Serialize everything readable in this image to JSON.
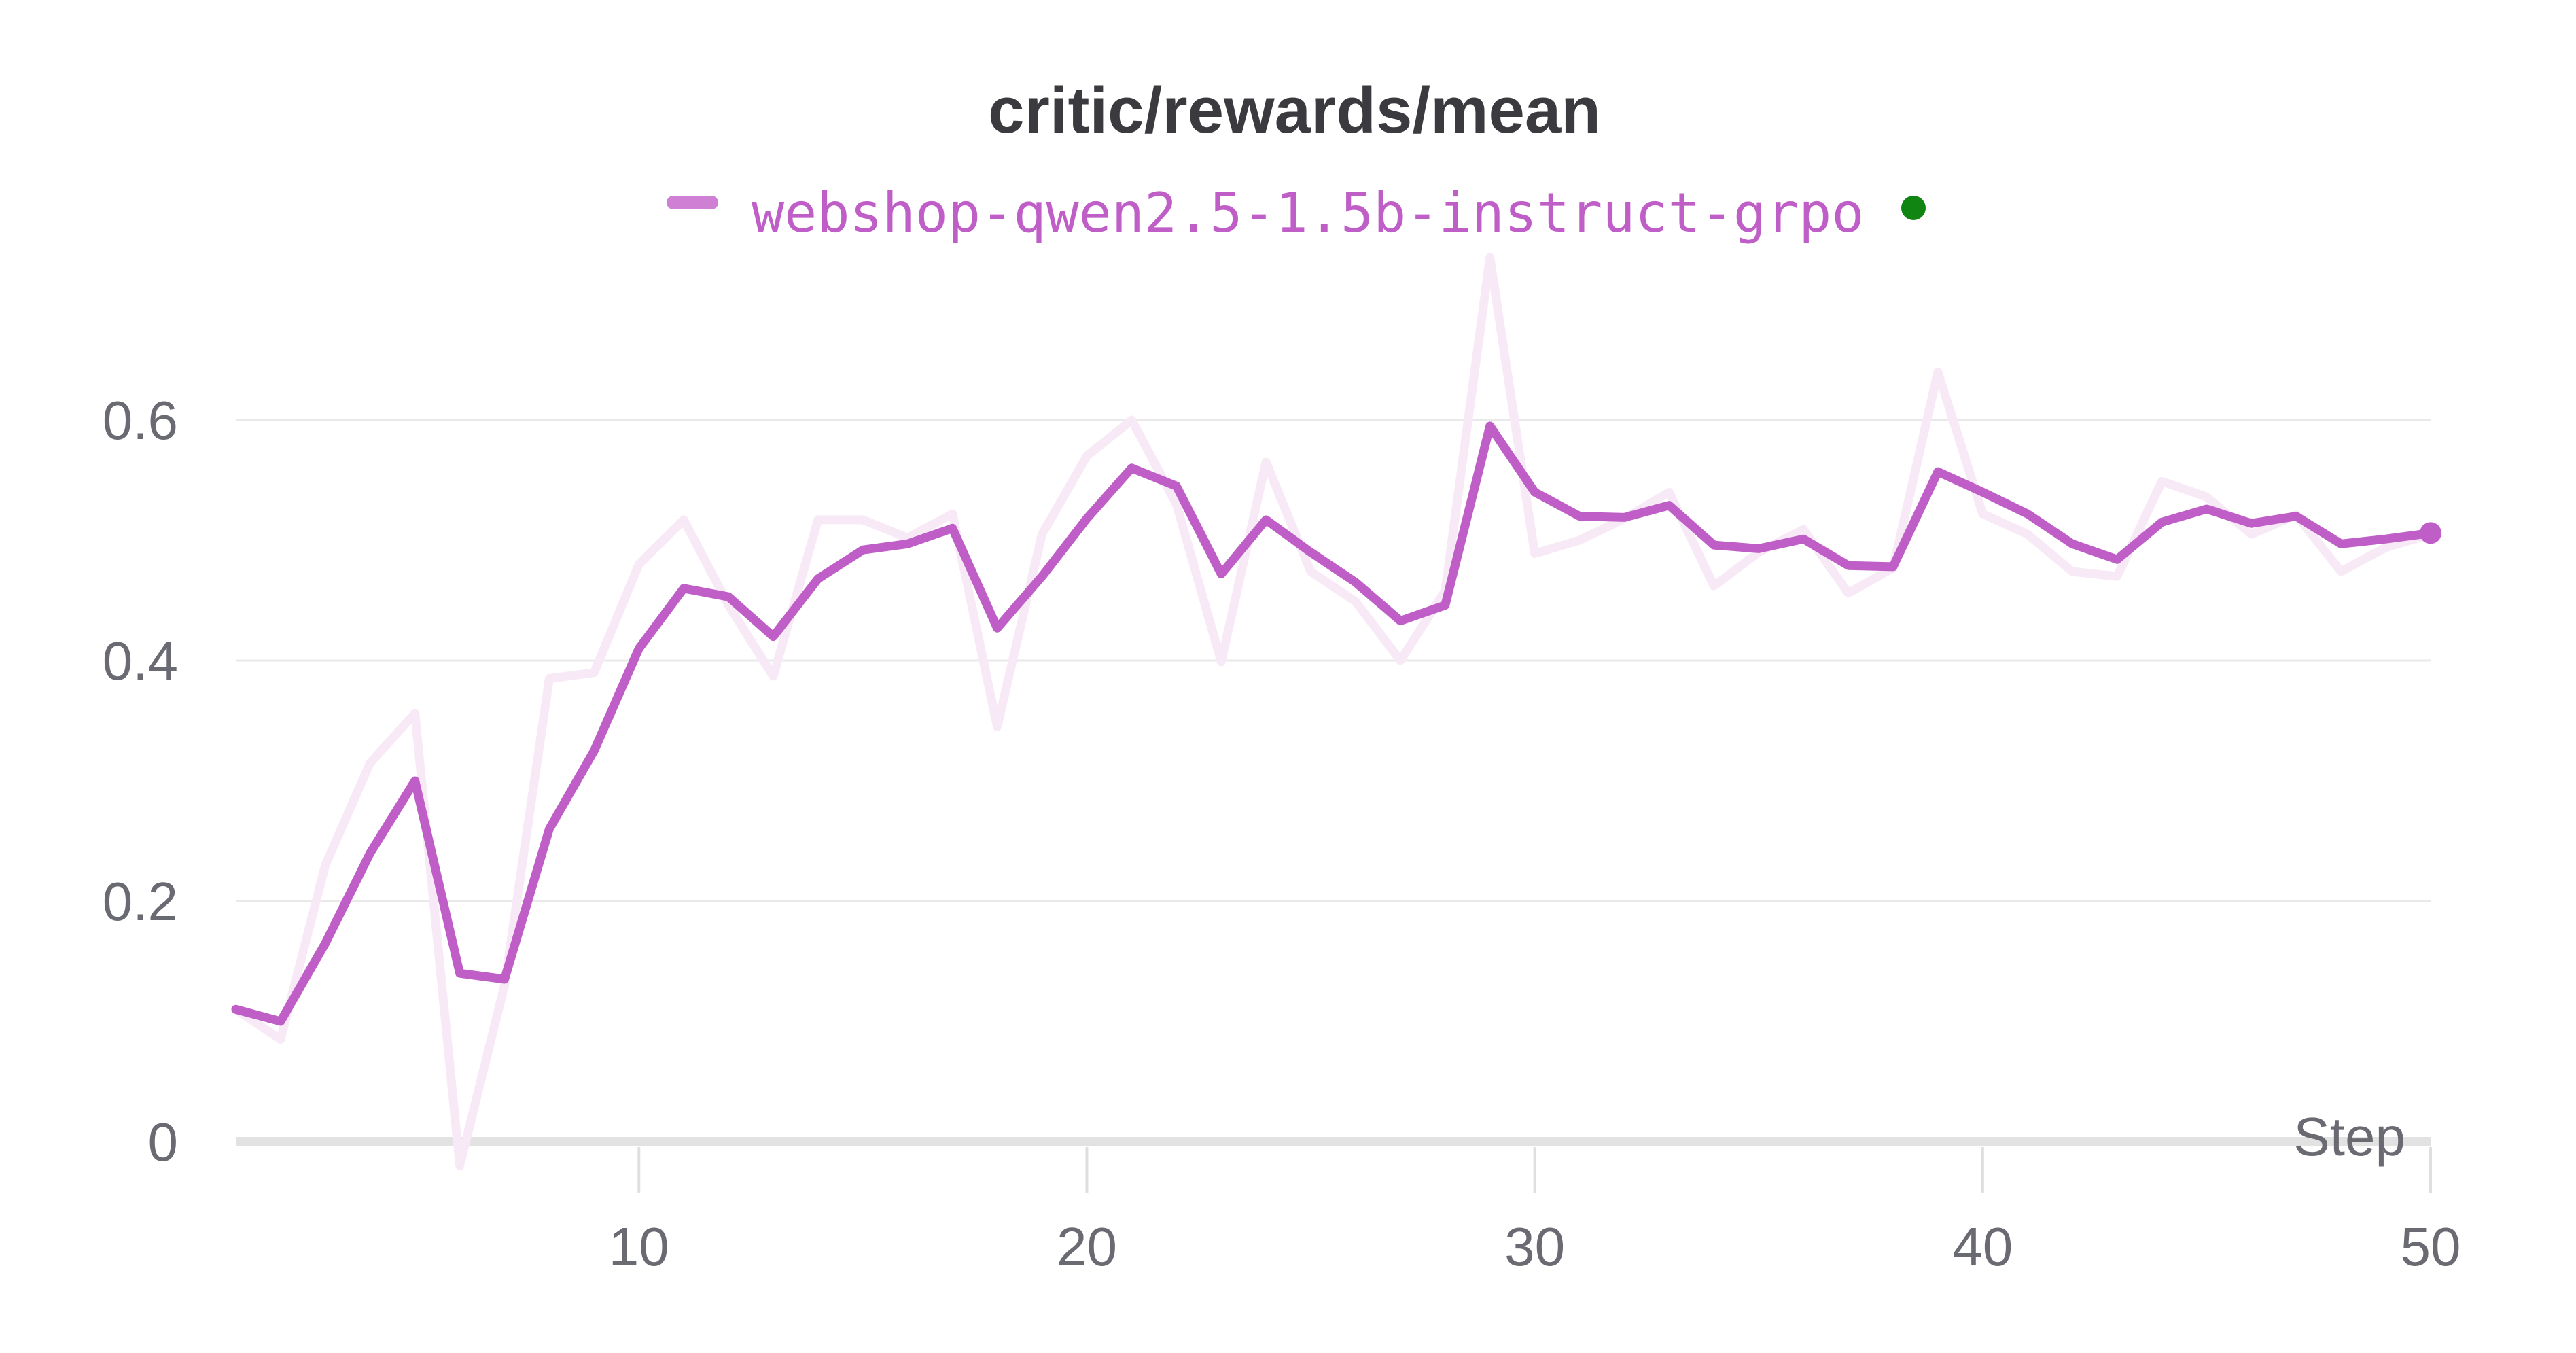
{
  "page": {
    "title": "critic/rewards/mean"
  },
  "legend": {
    "label": "webshop-qwen2.5-1.5b-instruct-grpo",
    "status_dot": "run-active-green-dot"
  },
  "colors": {
    "line": "#c05ec8",
    "line_raw": "#f7eaf6",
    "legend_text": "#c05ec8",
    "legend_swatch": "#cf7fd4",
    "green_dot": "#118511",
    "title": "#3a3a3f",
    "tick_text": "#6a6a72",
    "gridline": "#e9e9e9",
    "baseline": "#e2e2e2",
    "tick_mark": "#dfdfe3",
    "background": "#ffffff"
  },
  "chart_data": {
    "type": "line",
    "title": "critic/rewards/mean",
    "xlabel": "Step",
    "ylabel": "",
    "legend_position": "top-center",
    "grid": "horizontal",
    "x_axis": {
      "range": [
        1,
        50
      ],
      "ticks": [
        10,
        20,
        30,
        40,
        50
      ]
    },
    "y_axis": {
      "range": [
        -0.05,
        0.75
      ],
      "ticks": [
        {
          "label": "0",
          "value": 0
        },
        {
          "label": "0.2",
          "value": 0.2
        },
        {
          "label": "0.4",
          "value": 0.4
        },
        {
          "label": "0.6",
          "value": 0.6
        }
      ]
    },
    "x": [
      1,
      2,
      3,
      4,
      5,
      6,
      7,
      8,
      9,
      10,
      11,
      12,
      13,
      14,
      15,
      16,
      17,
      18,
      19,
      20,
      21,
      22,
      23,
      24,
      25,
      26,
      27,
      28,
      29,
      30,
      31,
      32,
      33,
      34,
      35,
      36,
      37,
      38,
      39,
      40,
      41,
      42,
      43,
      44,
      45,
      46,
      47,
      48,
      49,
      50
    ],
    "series": [
      {
        "name": "webshop-qwen2.5-1.5b-instruct-grpo (original)",
        "role": "raw",
        "values": [
          0.11,
          0.085,
          0.23,
          0.315,
          0.356,
          -0.02,
          0.13,
          0.385,
          0.39,
          0.48,
          0.517,
          0.446,
          0.387,
          0.517,
          0.517,
          0.502,
          0.522,
          0.345,
          0.505,
          0.57,
          0.6,
          0.53,
          0.399,
          0.565,
          0.474,
          0.449,
          0.4,
          0.458,
          0.735,
          0.489,
          0.5,
          0.518,
          0.54,
          0.462,
          0.49,
          0.509,
          0.456,
          0.477,
          0.64,
          0.522,
          0.505,
          0.474,
          0.47,
          0.549,
          0.536,
          0.505,
          0.521,
          0.474,
          0.494,
          0.505
        ]
      },
      {
        "name": "webshop-qwen2.5-1.5b-instruct-grpo",
        "role": "smoothed",
        "values": [
          0.11,
          0.1,
          0.165,
          0.24,
          0.3,
          0.14,
          0.135,
          0.26,
          0.325,
          0.41,
          0.46,
          0.453,
          0.42,
          0.468,
          0.492,
          0.497,
          0.51,
          0.427,
          0.47,
          0.518,
          0.56,
          0.545,
          0.472,
          0.517,
          0.49,
          0.465,
          0.433,
          0.446,
          0.595,
          0.54,
          0.52,
          0.519,
          0.529,
          0.496,
          0.493,
          0.501,
          0.479,
          0.478,
          0.557,
          0.54,
          0.522,
          0.497,
          0.484,
          0.515,
          0.526,
          0.514,
          0.52,
          0.497,
          0.501,
          0.506
        ]
      }
    ],
    "end_marker": {
      "step": 50,
      "value": 0.506
    }
  }
}
